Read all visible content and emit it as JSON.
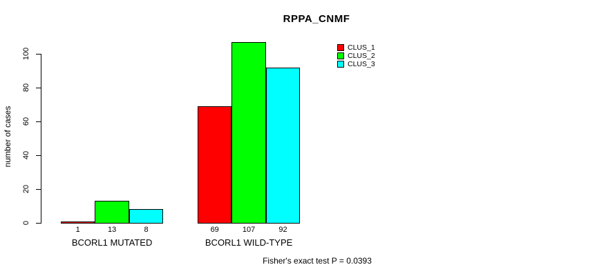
{
  "title": "RPPA_CNMF",
  "ylabel": "number of cases",
  "footer": "Fisher's exact test P = 0.0393",
  "legend": {
    "position": "top-right",
    "items": [
      {
        "label": "CLUS_1",
        "color": "#ff0000"
      },
      {
        "label": "CLUS_2",
        "color": "#00ff00"
      },
      {
        "label": "CLUS_3",
        "color": "#00ffff"
      }
    ]
  },
  "chart_data": {
    "type": "bar",
    "title": "RPPA_CNMF",
    "xlabel": "",
    "ylabel": "number of cases",
    "ylim": [
      0,
      110
    ],
    "yticks": [
      0,
      20,
      40,
      60,
      80,
      100
    ],
    "grid": false,
    "categories": [
      "BCORL1 MUTATED",
      "BCORL1 WILD-TYPE"
    ],
    "series": [
      {
        "name": "CLUS_1",
        "color": "#ff0000",
        "values": [
          1,
          69
        ]
      },
      {
        "name": "CLUS_2",
        "color": "#00ff00",
        "values": [
          13,
          107
        ]
      },
      {
        "name": "CLUS_3",
        "color": "#00ffff",
        "values": [
          8,
          92
        ]
      }
    ],
    "bar_value_labels": [
      [
        1,
        13,
        8
      ],
      [
        69,
        107,
        92
      ]
    ],
    "annotation": "Fisher's exact test P = 0.0393"
  }
}
